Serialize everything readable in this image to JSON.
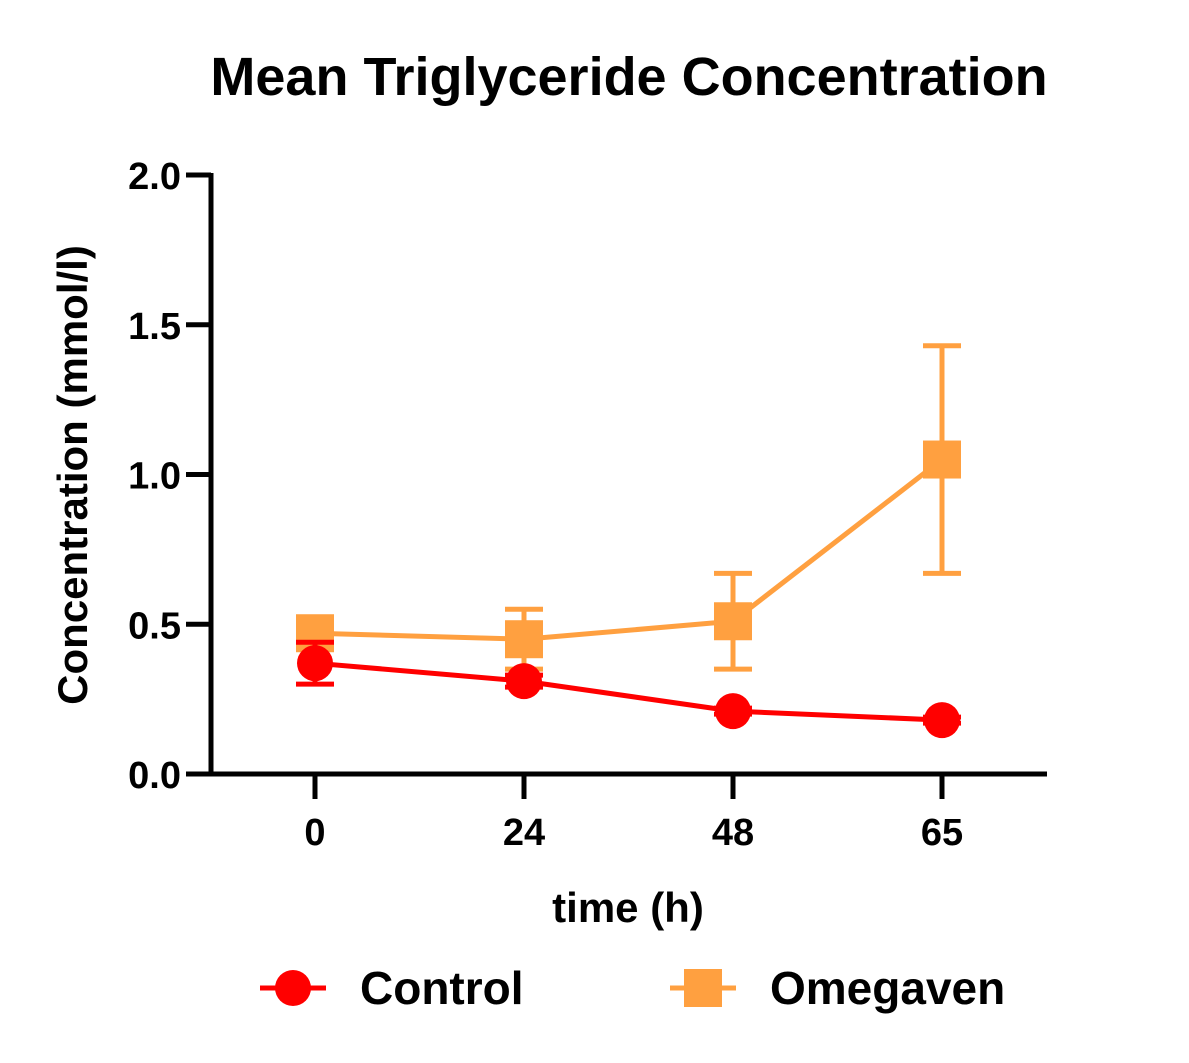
{
  "chart_data": {
    "type": "line",
    "title": "Mean Triglyceride Concentration",
    "xlabel": "time (h)",
    "ylabel": "Concentration (mmol/l)",
    "x": [
      0,
      24,
      48,
      65
    ],
    "x_tick_labels": [
      "0",
      "24",
      "48",
      "65"
    ],
    "y_ticks": [
      0.0,
      0.5,
      1.0,
      1.5,
      2.0
    ],
    "y_tick_labels": [
      "0.0",
      "0.5",
      "1.0",
      "1.5",
      "2.0"
    ],
    "ylim": [
      0,
      2.0
    ],
    "x_spacing": "categorical",
    "error_bars": true,
    "grid": false,
    "legend_position": "bottom",
    "series": [
      {
        "name": "Control",
        "marker": "circle",
        "color": "#ff0000",
        "values": [
          0.37,
          0.31,
          0.21,
          0.18
        ],
        "errors": [
          0.07,
          0.02,
          0.01,
          0.01
        ]
      },
      {
        "name": "Omegaven",
        "marker": "square",
        "color": "#ffa040",
        "values": [
          0.47,
          0.45,
          0.51,
          1.05
        ],
        "errors": [
          0.03,
          0.1,
          0.16,
          0.38
        ]
      }
    ]
  }
}
